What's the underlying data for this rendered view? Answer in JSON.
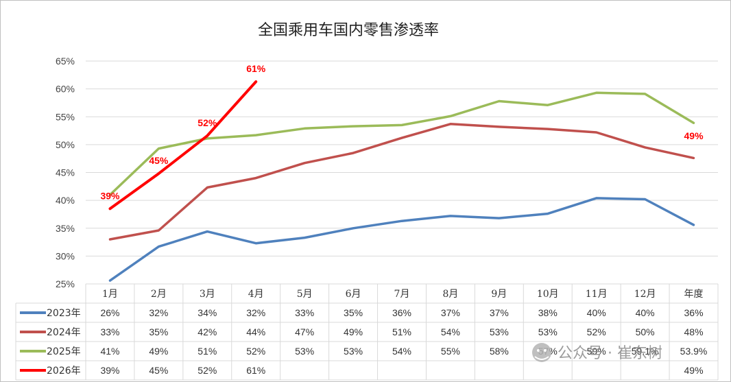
{
  "chart_data": {
    "type": "line",
    "title": "全国乘用车国内零售渗透率",
    "categories": [
      "1月",
      "2月",
      "3月",
      "4月",
      "5月",
      "6月",
      "7月",
      "8月",
      "9月",
      "10月",
      "11月",
      "12月",
      "年度"
    ],
    "yticks": [
      "25%",
      "30%",
      "35%",
      "40%",
      "45%",
      "50%",
      "55%",
      "60%",
      "65%"
    ],
    "ylim": [
      25,
      65
    ],
    "grid": true,
    "legend": "data-table",
    "series": [
      {
        "name": "2023年",
        "color": "#4f81bd",
        "values": [
          25.6,
          31.7,
          34.4,
          32.3,
          33.3,
          35.0,
          36.3,
          37.2,
          36.8,
          37.6,
          40.4,
          40.2,
          35.6
        ],
        "table": [
          "26%",
          "32%",
          "34%",
          "32%",
          "33%",
          "35%",
          "36%",
          "37%",
          "37%",
          "38%",
          "40%",
          "40%",
          "36%"
        ]
      },
      {
        "name": "2024年",
        "color": "#c0504d",
        "values": [
          33.0,
          34.6,
          42.3,
          44.0,
          46.7,
          48.5,
          51.2,
          53.7,
          53.2,
          52.8,
          52.2,
          49.5,
          47.6
        ],
        "table": [
          "33%",
          "35%",
          "42%",
          "44%",
          "47%",
          "49%",
          "51%",
          "54%",
          "53%",
          "53%",
          "52%",
          "50%",
          "48%"
        ]
      },
      {
        "name": "2025年",
        "color": "#9bbb59",
        "values": [
          41.0,
          49.3,
          51.1,
          51.7,
          52.9,
          53.3,
          53.5,
          55.1,
          57.8,
          57.1,
          59.3,
          59.1,
          53.9
        ],
        "table": [
          "41%",
          "49%",
          "51%",
          "52%",
          "53%",
          "53%",
          "54%",
          "55%",
          "58%",
          "57%",
          "59%",
          "59.1%",
          "53.9%"
        ]
      },
      {
        "name": "2026年",
        "color": "#ff0000",
        "values": [
          38.5,
          44.8,
          51.6,
          61.3,
          null,
          null,
          null,
          null,
          null,
          null,
          null,
          null,
          null
        ],
        "table": [
          "39%",
          "45%",
          "52%",
          "61%",
          "",
          "",
          "",
          "",
          "",
          "",
          "",
          "",
          "49%"
        ]
      }
    ],
    "annotations": [
      {
        "series": 3,
        "index": 0,
        "text": "39%"
      },
      {
        "series": 3,
        "index": 1,
        "text": "45%"
      },
      {
        "series": 3,
        "index": 2,
        "text": "52%"
      },
      {
        "series": 3,
        "index": 3,
        "text": "61%"
      },
      {
        "series": 2,
        "index": 12,
        "text": "49%"
      }
    ]
  },
  "watermark": {
    "text": "公众号 · 崔东树",
    "icon": "wechat-icon"
  }
}
